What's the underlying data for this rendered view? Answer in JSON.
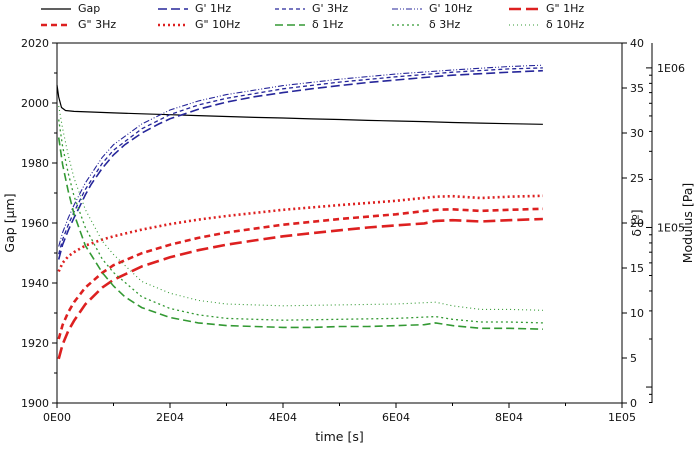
{
  "chart_data": {
    "type": "line",
    "title": "",
    "xlabel": "time [s]",
    "legend_position": "top",
    "grid": false,
    "axes": {
      "x": {
        "label": "time [s]",
        "min": 0,
        "max": 100000,
        "major_ticks": [
          {
            "v": 0,
            "label": "0E00"
          },
          {
            "v": 20000,
            "label": "2E04"
          },
          {
            "v": 40000,
            "label": "4E04"
          },
          {
            "v": 60000,
            "label": "6E04"
          },
          {
            "v": 80000,
            "label": "8E04"
          },
          {
            "v": 100000,
            "label": "1E05"
          }
        ],
        "minor_step": 10000
      },
      "gap": {
        "label": "Gap [μm]",
        "min": 1900,
        "max": 2020,
        "major_step": 20,
        "minor_step": 10
      },
      "delta": {
        "label": "δ [º]",
        "min": 0,
        "max": 40,
        "major_step": 5
      },
      "modulus": {
        "label": "Modulus [Pa]",
        "log_min": 3.9,
        "log_max": 6.156,
        "major_ticks": [
          {
            "v": 100000,
            "label": "1E05"
          },
          {
            "v": 1000000,
            "label": "1E06"
          }
        ]
      }
    },
    "legend": {
      "rows": [
        [
          "gap",
          "gp1",
          "gp3",
          "gp10",
          "gpp1"
        ],
        [
          "gpp3",
          "gpp10",
          "d1",
          "d3",
          "d10"
        ]
      ]
    },
    "series": [
      {
        "id": "gap",
        "name": "Gap",
        "axis": "gap",
        "color": "#000000",
        "width": 1.2,
        "dash": "",
        "points": [
          [
            0,
            2006
          ],
          [
            300,
            2002
          ],
          [
            800,
            1998.5
          ],
          [
            1500,
            1997.5
          ],
          [
            3000,
            1997.2
          ],
          [
            6000,
            1997.0
          ],
          [
            10000,
            1996.7
          ],
          [
            15000,
            1996.4
          ],
          [
            20000,
            1996.1
          ],
          [
            25000,
            1995.8
          ],
          [
            30000,
            1995.5
          ],
          [
            35000,
            1995.2
          ],
          [
            40000,
            1995.0
          ],
          [
            45000,
            1994.7
          ],
          [
            50000,
            1994.5
          ],
          [
            55000,
            1994.2
          ],
          [
            60000,
            1994.0
          ],
          [
            65000,
            1993.8
          ],
          [
            70000,
            1993.5
          ],
          [
            75000,
            1993.3
          ],
          [
            80000,
            1993.1
          ],
          [
            86000,
            1992.9
          ]
        ]
      },
      {
        "id": "gp1",
        "name": "G' 1Hz",
        "axis": "modulus",
        "color": "#26269a",
        "width": 1.6,
        "dash": "9 4",
        "points": [
          [
            300,
            63000
          ],
          [
            1000,
            78000
          ],
          [
            2000,
            96000
          ],
          [
            3000,
            115000
          ],
          [
            4000,
            135000
          ],
          [
            5000,
            160000
          ],
          [
            6000,
            185000
          ],
          [
            8000,
            235000
          ],
          [
            10000,
            285000
          ],
          [
            12000,
            330000
          ],
          [
            15000,
            390000
          ],
          [
            18000,
            445000
          ],
          [
            20000,
            480000
          ],
          [
            25000,
            550000
          ],
          [
            30000,
            610000
          ],
          [
            35000,
            660000
          ],
          [
            40000,
            700000
          ],
          [
            45000,
            740000
          ],
          [
            50000,
            775000
          ],
          [
            55000,
            810000
          ],
          [
            60000,
            840000
          ],
          [
            65000,
            870000
          ],
          [
            70000,
            900000
          ],
          [
            75000,
            920000
          ],
          [
            80000,
            940000
          ],
          [
            86000,
            960000
          ]
        ]
      },
      {
        "id": "gp3",
        "name": "G' 3Hz",
        "axis": "modulus",
        "color": "#26269a",
        "width": 1.3,
        "dash": "4 3",
        "points": [
          [
            300,
            68000
          ],
          [
            1000,
            84000
          ],
          [
            2000,
            104000
          ],
          [
            3000,
            125000
          ],
          [
            5000,
            173000
          ],
          [
            8000,
            252000
          ],
          [
            10000,
            305000
          ],
          [
            15000,
            415000
          ],
          [
            20000,
            510000
          ],
          [
            25000,
            585000
          ],
          [
            30000,
            645000
          ],
          [
            40000,
            740000
          ],
          [
            50000,
            815000
          ],
          [
            60000,
            880000
          ],
          [
            70000,
            940000
          ],
          [
            80000,
            985000
          ],
          [
            86000,
            1000000
          ]
        ]
      },
      {
        "id": "gp10",
        "name": "G' 10Hz",
        "axis": "modulus",
        "color": "#26269a",
        "width": 1.1,
        "dash": "6 2 1 2 1 2",
        "points": [
          [
            300,
            76000
          ],
          [
            1000,
            93000
          ],
          [
            2000,
            115000
          ],
          [
            3000,
            138000
          ],
          [
            5000,
            190000
          ],
          [
            8000,
            275000
          ],
          [
            10000,
            330000
          ],
          [
            15000,
            445000
          ],
          [
            20000,
            545000
          ],
          [
            25000,
            620000
          ],
          [
            30000,
            680000
          ],
          [
            40000,
            775000
          ],
          [
            50000,
            850000
          ],
          [
            60000,
            915000
          ],
          [
            70000,
            970000
          ],
          [
            80000,
            1020000
          ],
          [
            86000,
            1040000
          ]
        ]
      },
      {
        "id": "gpp1",
        "name": "G\" 1Hz",
        "axis": "modulus",
        "color": "#dd2020",
        "width": 2.6,
        "dash": "12 5",
        "points": [
          [
            300,
            15000
          ],
          [
            1000,
            18500
          ],
          [
            2000,
            22500
          ],
          [
            3000,
            26000
          ],
          [
            5000,
            33000
          ],
          [
            8000,
            42000
          ],
          [
            10000,
            47000
          ],
          [
            15000,
            57000
          ],
          [
            20000,
            65000
          ],
          [
            25000,
            72000
          ],
          [
            30000,
            78000
          ],
          [
            35000,
            83000
          ],
          [
            40000,
            88000
          ],
          [
            45000,
            92000
          ],
          [
            50000,
            96000
          ],
          [
            55000,
            100000
          ],
          [
            60000,
            103000
          ],
          [
            65000,
            106000
          ],
          [
            67000,
            110000
          ],
          [
            70000,
            111000
          ],
          [
            75000,
            109000
          ],
          [
            80000,
            111000
          ],
          [
            86000,
            113000
          ]
        ]
      },
      {
        "id": "gpp3",
        "name": "G\" 3Hz",
        "axis": "modulus",
        "color": "#dd2020",
        "width": 2.6,
        "dash": "6 4",
        "points": [
          [
            300,
            20000
          ],
          [
            1000,
            24500
          ],
          [
            2000,
            29500
          ],
          [
            3000,
            34000
          ],
          [
            5000,
            42000
          ],
          [
            8000,
            52000
          ],
          [
            10000,
            58000
          ],
          [
            15000,
            69000
          ],
          [
            20000,
            78000
          ],
          [
            25000,
            86000
          ],
          [
            30000,
            93000
          ],
          [
            40000,
            104000
          ],
          [
            50000,
            113000
          ],
          [
            60000,
            121000
          ],
          [
            67000,
            129000
          ],
          [
            70000,
            130000
          ],
          [
            75000,
            127000
          ],
          [
            80000,
            129000
          ],
          [
            86000,
            131000
          ]
        ]
      },
      {
        "id": "gpp10",
        "name": "G\" 10Hz",
        "axis": "modulus",
        "color": "#dd2020",
        "width": 2.6,
        "dash": "2 3",
        "points": [
          [
            300,
            53000
          ],
          [
            1000,
            60000
          ],
          [
            2000,
            66000
          ],
          [
            3000,
            70000
          ],
          [
            5000,
            77000
          ],
          [
            8000,
            84000
          ],
          [
            10000,
            88000
          ],
          [
            15000,
            97000
          ],
          [
            20000,
            105000
          ],
          [
            25000,
            112000
          ],
          [
            30000,
            118000
          ],
          [
            40000,
            129000
          ],
          [
            50000,
            138000
          ],
          [
            60000,
            147000
          ],
          [
            67000,
            156000
          ],
          [
            70000,
            157000
          ],
          [
            75000,
            153000
          ],
          [
            80000,
            156000
          ],
          [
            86000,
            158000
          ]
        ]
      },
      {
        "id": "d1",
        "name": "δ 1Hz",
        "axis": "delta",
        "color": "#339933",
        "width": 1.6,
        "dash": "8 4",
        "points": [
          [
            300,
            29.5
          ],
          [
            1000,
            26.5
          ],
          [
            2000,
            23.5
          ],
          [
            3000,
            21
          ],
          [
            5000,
            17.5
          ],
          [
            8000,
            14.5
          ],
          [
            10000,
            13
          ],
          [
            12000,
            11.8
          ],
          [
            15000,
            10.6
          ],
          [
            20000,
            9.5
          ],
          [
            25000,
            8.9
          ],
          [
            30000,
            8.6
          ],
          [
            35000,
            8.5
          ],
          [
            40000,
            8.4
          ],
          [
            45000,
            8.4
          ],
          [
            50000,
            8.5
          ],
          [
            55000,
            8.5
          ],
          [
            60000,
            8.6
          ],
          [
            65000,
            8.7
          ],
          [
            67000,
            8.9
          ],
          [
            70000,
            8.6
          ],
          [
            75000,
            8.3
          ],
          [
            80000,
            8.3
          ],
          [
            86000,
            8.2
          ]
        ]
      },
      {
        "id": "d3",
        "name": "δ 3Hz",
        "axis": "delta",
        "color": "#339933",
        "width": 1.3,
        "dash": "2 3",
        "points": [
          [
            300,
            31.5
          ],
          [
            1000,
            28.5
          ],
          [
            2000,
            25.5
          ],
          [
            3000,
            23
          ],
          [
            5000,
            19.5
          ],
          [
            8000,
            16
          ],
          [
            10000,
            14.5
          ],
          [
            15000,
            11.8
          ],
          [
            20000,
            10.5
          ],
          [
            25000,
            9.8
          ],
          [
            30000,
            9.4
          ],
          [
            40000,
            9.2
          ],
          [
            50000,
            9.3
          ],
          [
            60000,
            9.4
          ],
          [
            67000,
            9.6
          ],
          [
            70000,
            9.3
          ],
          [
            75000,
            9.0
          ],
          [
            80000,
            9.0
          ],
          [
            86000,
            8.9
          ]
        ]
      },
      {
        "id": "d10",
        "name": "δ 10Hz",
        "axis": "delta",
        "color": "#339933",
        "width": 1.1,
        "dash": "1 3",
        "points": [
          [
            300,
            33
          ],
          [
            1000,
            30.5
          ],
          [
            2000,
            27.5
          ],
          [
            3000,
            25
          ],
          [
            5000,
            21.5
          ],
          [
            8000,
            18
          ],
          [
            10000,
            16.5
          ],
          [
            15000,
            13.5
          ],
          [
            20000,
            12.2
          ],
          [
            25000,
            11.4
          ],
          [
            30000,
            11.0
          ],
          [
            40000,
            10.8
          ],
          [
            50000,
            10.9
          ],
          [
            60000,
            11.0
          ],
          [
            67000,
            11.2
          ],
          [
            70000,
            10.8
          ],
          [
            75000,
            10.4
          ],
          [
            80000,
            10.4
          ],
          [
            86000,
            10.3
          ]
        ]
      }
    ]
  }
}
